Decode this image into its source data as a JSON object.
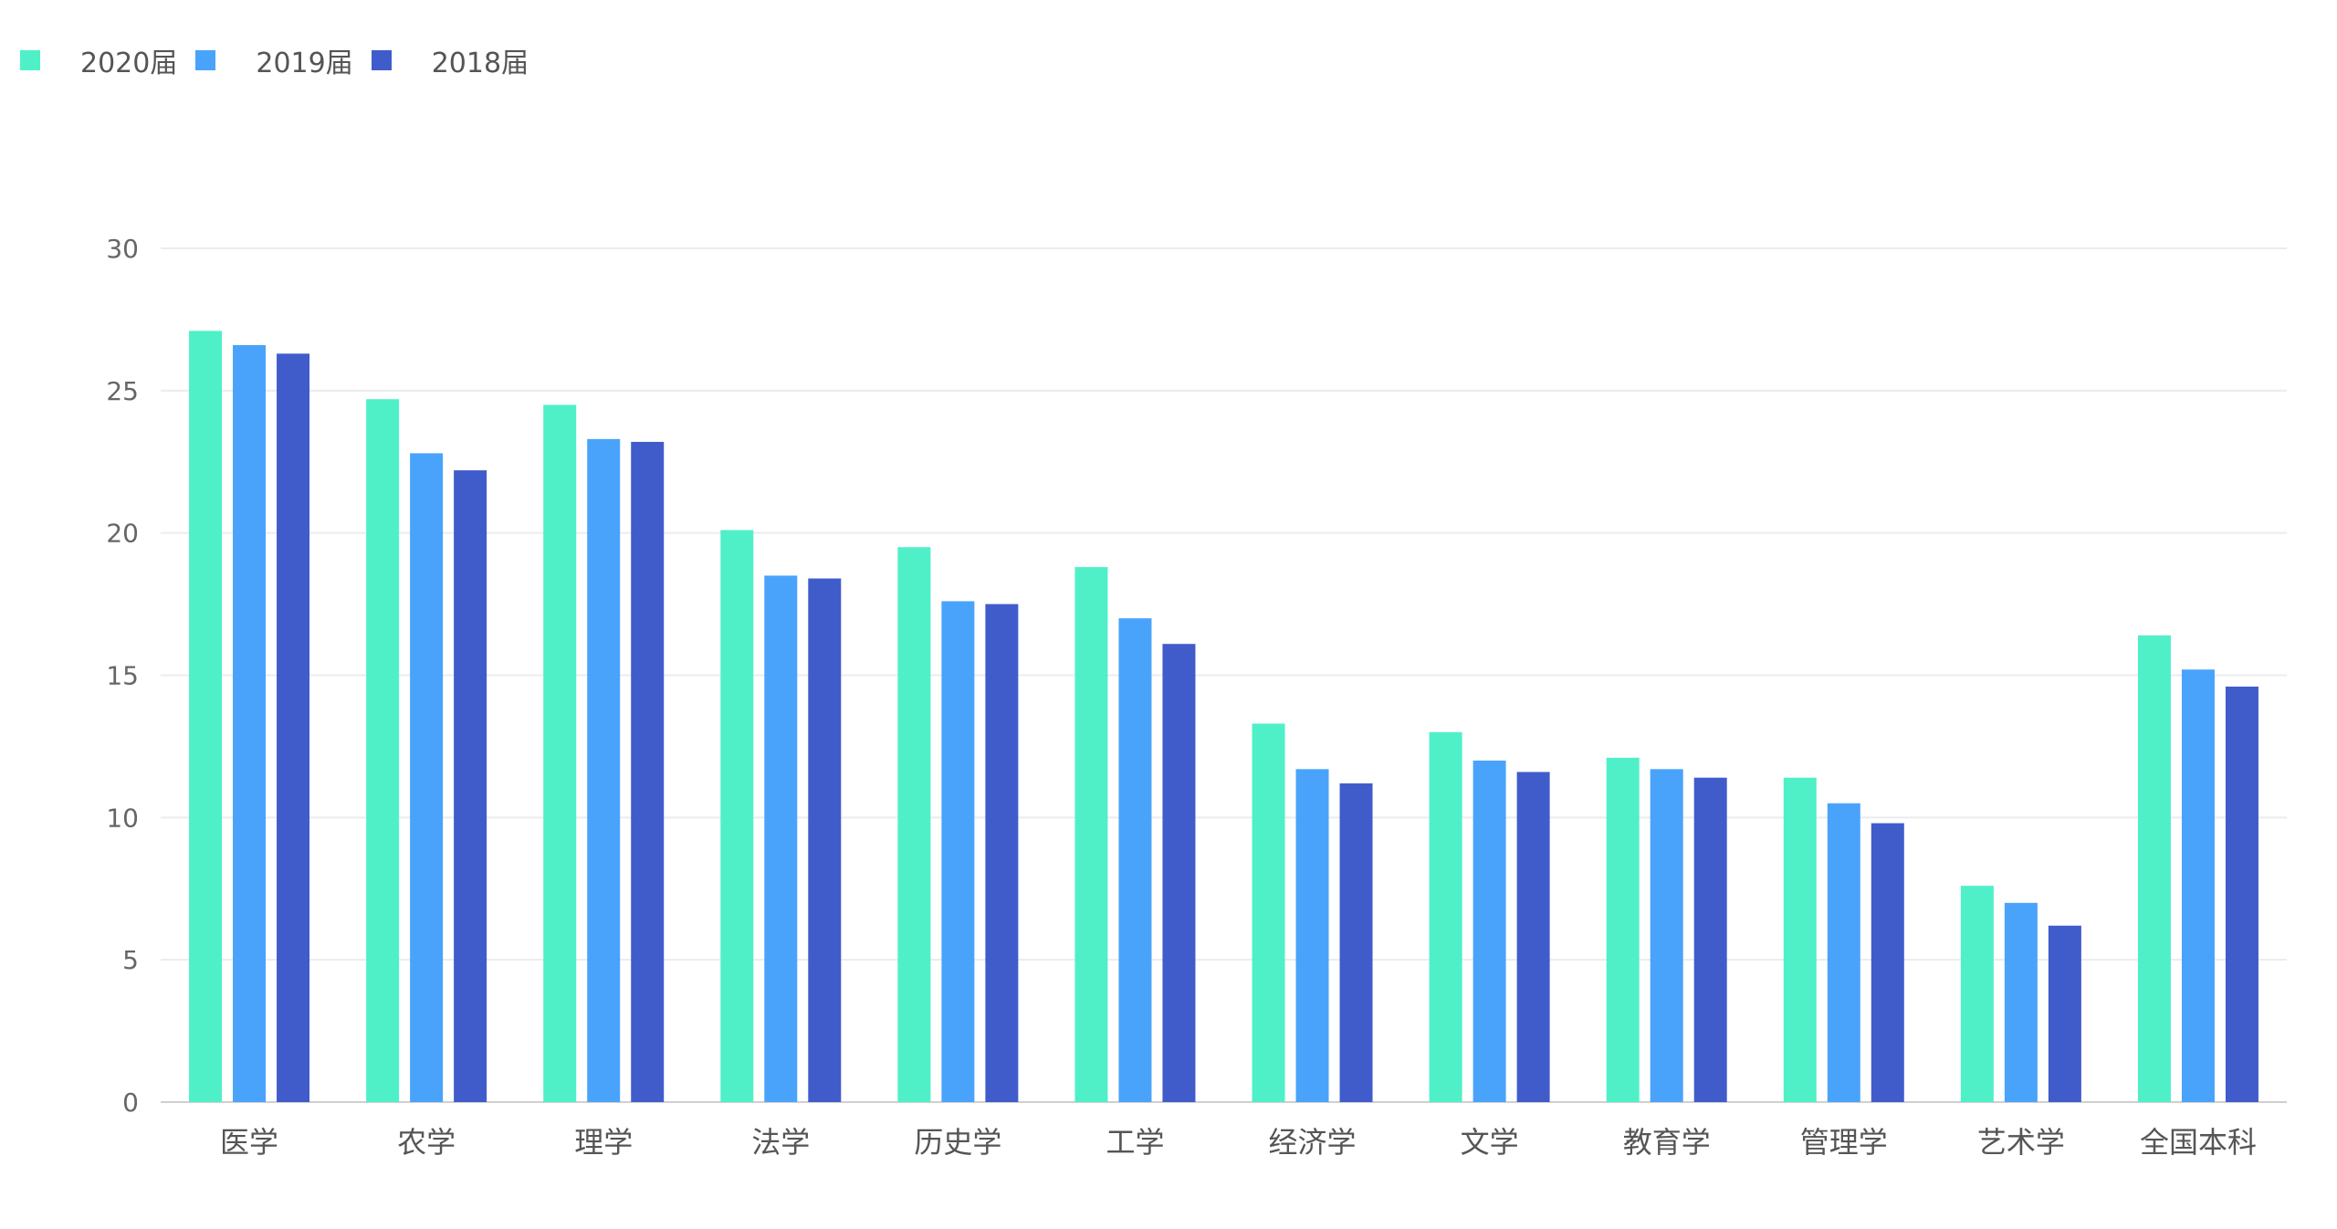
{
  "chart_data": {
    "type": "bar",
    "categories": [
      "医学",
      "农学",
      "理学",
      "法学",
      "历史学",
      "工学",
      "经济学",
      "文学",
      "教育学",
      "管理学",
      "艺术学",
      "全国本科"
    ],
    "series": [
      {
        "name": "2020届",
        "color": "#4ff0c8",
        "values": [
          27.1,
          24.7,
          24.5,
          20.1,
          19.5,
          18.8,
          13.3,
          13.0,
          12.1,
          11.4,
          7.6,
          16.4
        ]
      },
      {
        "name": "2019届",
        "color": "#4aa3fb",
        "values": [
          26.6,
          22.8,
          23.3,
          18.5,
          17.6,
          17.0,
          11.7,
          12.0,
          11.7,
          10.5,
          7.0,
          15.2
        ]
      },
      {
        "name": "2018届",
        "color": "#405ccb",
        "values": [
          26.3,
          22.2,
          23.2,
          18.4,
          17.5,
          16.1,
          11.2,
          11.6,
          11.4,
          9.8,
          6.2,
          14.6
        ]
      }
    ],
    "yticks": [
      "0",
      "5",
      "10",
      "15",
      "20",
      "25",
      "30"
    ],
    "ylim": [
      0,
      30
    ],
    "grid": true,
    "legend_position": "top-left"
  }
}
